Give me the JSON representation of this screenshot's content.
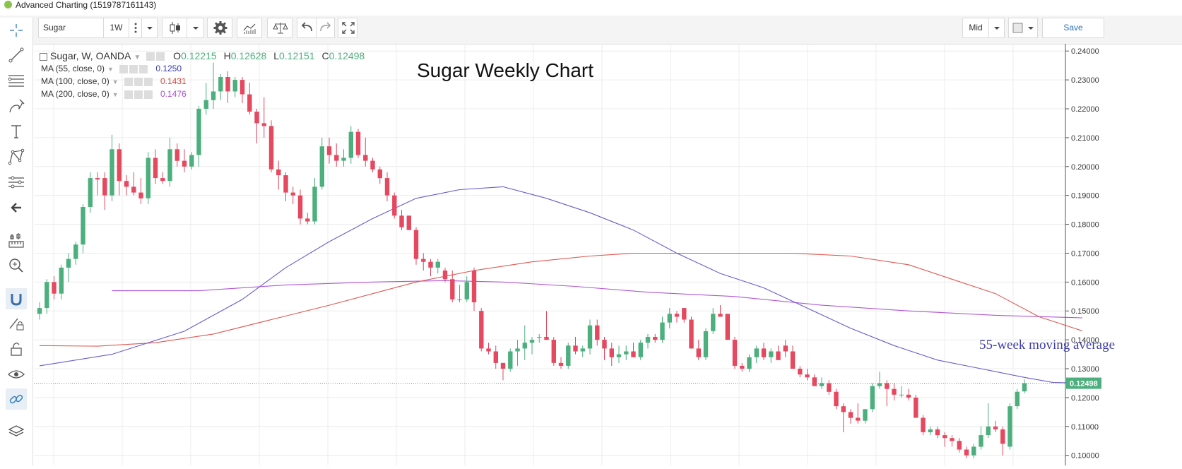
{
  "window": {
    "title": "Advanced Charting (1519787161143)"
  },
  "toolbar": {
    "symbol": "Sugar",
    "interval": "1W",
    "price_mode": "Mid",
    "save_label": "Save"
  },
  "legend": {
    "main": {
      "name": "Sugar, W, OANDA",
      "o_label": "O",
      "o": "0.12215",
      "h_label": "H",
      "h": "0.12628",
      "l_label": "L",
      "l": "0.12151",
      "c_label": "C",
      "c": "0.12498"
    },
    "ma55": {
      "label": "MA (55, close, 0)",
      "value": "0.1250"
    },
    "ma100": {
      "label": "MA (100, close, 0)",
      "value": "0.1431"
    },
    "ma200": {
      "label": "MA (200, close, 0)",
      "value": "0.1476"
    }
  },
  "colors": {
    "up": "#4caf7d",
    "down": "#e5485f",
    "ma55": "#6a5acd",
    "ma100": "#e0574f",
    "ma200": "#b058d4",
    "price_badge": "#4caf7d",
    "annotation": "#3e3ea8"
  },
  "icons": [
    "crosshair-icon",
    "trendline-icon",
    "horizontal-lines-icon",
    "brush-icon",
    "text-icon",
    "pattern-icon",
    "measure-icon",
    "back-arrow-icon",
    "ruler-icon",
    "zoom-in-icon",
    "magnet-icon",
    "lock-draw-icon",
    "lock-icon",
    "eye-icon",
    "link-icon",
    "layers-icon",
    "candles-icon",
    "gear-icon",
    "indicators-icon",
    "compare-icon",
    "undo-icon",
    "redo-icon",
    "fullscreen-icon",
    "chevron-down-icon"
  ],
  "chart_data": {
    "type": "candlestick",
    "title": "Sugar Weekly Chart",
    "annotation": "55-week moving average",
    "ylim": [
      0.0965,
      0.2425
    ],
    "yticks": [
      "0.24000",
      "0.23000",
      "0.22000",
      "0.21000",
      "0.20000",
      "0.19000",
      "0.18000",
      "0.17000",
      "0.16000",
      "0.15000",
      "0.14000",
      "0.13000",
      "0.12000",
      "0.11000",
      "0.10000"
    ],
    "last_price": "0.12498",
    "grid": true,
    "candles": [
      [
        0.149,
        0.153,
        0.147,
        0.151
      ],
      [
        0.151,
        0.161,
        0.149,
        0.16
      ],
      [
        0.16,
        0.162,
        0.154,
        0.156
      ],
      [
        0.156,
        0.166,
        0.154,
        0.165
      ],
      [
        0.165,
        0.17,
        0.16,
        0.168
      ],
      [
        0.168,
        0.174,
        0.166,
        0.173
      ],
      [
        0.173,
        0.187,
        0.17,
        0.186
      ],
      [
        0.186,
        0.198,
        0.184,
        0.196
      ],
      [
        0.196,
        0.198,
        0.19,
        0.1955
      ],
      [
        0.196,
        0.198,
        0.185,
        0.19
      ],
      [
        0.19,
        0.211,
        0.188,
        0.206
      ],
      [
        0.206,
        0.208,
        0.19,
        0.195
      ],
      [
        0.195,
        0.197,
        0.19,
        0.193
      ],
      [
        0.193,
        0.198,
        0.19,
        0.191
      ],
      [
        0.191,
        0.196,
        0.187,
        0.189
      ],
      [
        0.189,
        0.205,
        0.187,
        0.203
      ],
      [
        0.203,
        0.206,
        0.194,
        0.196
      ],
      [
        0.196,
        0.198,
        0.194,
        0.195
      ],
      [
        0.195,
        0.21,
        0.193,
        0.206
      ],
      [
        0.206,
        0.208,
        0.2,
        0.202
      ],
      [
        0.202,
        0.206,
        0.198,
        0.2
      ],
      [
        0.2,
        0.205,
        0.199,
        0.204
      ],
      [
        0.204,
        0.221,
        0.2,
        0.22
      ],
      [
        0.22,
        0.229,
        0.218,
        0.223
      ],
      [
        0.223,
        0.236,
        0.22,
        0.226
      ],
      [
        0.226,
        0.232,
        0.223,
        0.231
      ],
      [
        0.231,
        0.233,
        0.222,
        0.226
      ],
      [
        0.226,
        0.231,
        0.224,
        0.23
      ],
      [
        0.23,
        0.231,
        0.222,
        0.225
      ],
      [
        0.225,
        0.229,
        0.218,
        0.219
      ],
      [
        0.219,
        0.22,
        0.208,
        0.215
      ],
      [
        0.215,
        0.224,
        0.21,
        0.214
      ],
      [
        0.214,
        0.216,
        0.198,
        0.199
      ],
      [
        0.199,
        0.202,
        0.192,
        0.197
      ],
      [
        0.197,
        0.198,
        0.188,
        0.191
      ],
      [
        0.191,
        0.193,
        0.187,
        0.19
      ],
      [
        0.19,
        0.192,
        0.18,
        0.182
      ],
      [
        0.182,
        0.184,
        0.18,
        0.181
      ],
      [
        0.181,
        0.196,
        0.18,
        0.193
      ],
      [
        0.193,
        0.21,
        0.192,
        0.207
      ],
      [
        0.207,
        0.21,
        0.201,
        0.204
      ],
      [
        0.204,
        0.208,
        0.2,
        0.202
      ],
      [
        0.202,
        0.206,
        0.2,
        0.203
      ],
      [
        0.203,
        0.214,
        0.201,
        0.212
      ],
      [
        0.212,
        0.213,
        0.203,
        0.204
      ],
      [
        0.204,
        0.21,
        0.2,
        0.202
      ],
      [
        0.202,
        0.203,
        0.198,
        0.199
      ],
      [
        0.199,
        0.2,
        0.194,
        0.196
      ],
      [
        0.196,
        0.198,
        0.188,
        0.19
      ],
      [
        0.19,
        0.191,
        0.182,
        0.183
      ],
      [
        0.183,
        0.185,
        0.178,
        0.179
      ],
      [
        0.183,
        0.183,
        0.178,
        0.178
      ],
      [
        0.178,
        0.179,
        0.166,
        0.168
      ],
      [
        0.168,
        0.17,
        0.164,
        0.167
      ],
      [
        0.167,
        0.168,
        0.162,
        0.165
      ],
      [
        0.165,
        0.168,
        0.163,
        0.167
      ],
      [
        0.164,
        0.165,
        0.16,
        0.161
      ],
      [
        0.161,
        0.164,
        0.153,
        0.154
      ],
      [
        0.154,
        0.159,
        0.153,
        0.154
      ],
      [
        0.154,
        0.162,
        0.153,
        0.16
      ],
      [
        0.164,
        0.165,
        0.15,
        0.153
      ],
      [
        0.15,
        0.151,
        0.136,
        0.137
      ],
      [
        0.137,
        0.139,
        0.135,
        0.136
      ],
      [
        0.136,
        0.138,
        0.13,
        0.132
      ],
      [
        0.132,
        0.131,
        0.126,
        0.13
      ],
      [
        0.13,
        0.137,
        0.129,
        0.136
      ],
      [
        0.136,
        0.14,
        0.131,
        0.137
      ],
      [
        0.137,
        0.145,
        0.133,
        0.139
      ],
      [
        0.139,
        0.141,
        0.135,
        0.14
      ],
      [
        0.141,
        0.142,
        0.139,
        0.141
      ],
      [
        0.141,
        0.15,
        0.14,
        0.14
      ],
      [
        0.14,
        0.141,
        0.131,
        0.132
      ],
      [
        0.132,
        0.134,
        0.13,
        0.131
      ],
      [
        0.131,
        0.139,
        0.13,
        0.138
      ],
      [
        0.138,
        0.141,
        0.135,
        0.136
      ],
      [
        0.136,
        0.138,
        0.134,
        0.137
      ],
      [
        0.137,
        0.147,
        0.135,
        0.145
      ],
      [
        0.145,
        0.147,
        0.138,
        0.14
      ],
      [
        0.14,
        0.141,
        0.133,
        0.137
      ],
      [
        0.137,
        0.139,
        0.131,
        0.134
      ],
      [
        0.134,
        0.138,
        0.132,
        0.135
      ],
      [
        0.135,
        0.138,
        0.133,
        0.136
      ],
      [
        0.136,
        0.139,
        0.134,
        0.134
      ],
      [
        0.134,
        0.14,
        0.133,
        0.139
      ],
      [
        0.139,
        0.142,
        0.137,
        0.141
      ],
      [
        0.141,
        0.142,
        0.139,
        0.14
      ],
      [
        0.14,
        0.148,
        0.139,
        0.146
      ],
      [
        0.146,
        0.151,
        0.144,
        0.149
      ],
      [
        0.149,
        0.15,
        0.146,
        0.148
      ],
      [
        0.151,
        0.151,
        0.146,
        0.147
      ],
      [
        0.147,
        0.148,
        0.137,
        0.137
      ],
      [
        0.137,
        0.14,
        0.133,
        0.134
      ],
      [
        0.134,
        0.144,
        0.133,
        0.143
      ],
      [
        0.143,
        0.151,
        0.142,
        0.149
      ],
      [
        0.149,
        0.152,
        0.148,
        0.148
      ],
      [
        0.149,
        0.149,
        0.14,
        0.14
      ],
      [
        0.14,
        0.141,
        0.13,
        0.131
      ],
      [
        0.131,
        0.132,
        0.129,
        0.13
      ],
      [
        0.13,
        0.135,
        0.129,
        0.134
      ],
      [
        0.134,
        0.138,
        0.132,
        0.137
      ],
      [
        0.137,
        0.139,
        0.133,
        0.134
      ],
      [
        0.134,
        0.137,
        0.132,
        0.136
      ],
      [
        0.136,
        0.138,
        0.133,
        0.133
      ],
      [
        0.138,
        0.14,
        0.134,
        0.136
      ],
      [
        0.136,
        0.138,
        0.13,
        0.13
      ],
      [
        0.13,
        0.131,
        0.127,
        0.128
      ],
      [
        0.128,
        0.13,
        0.126,
        0.127
      ],
      [
        0.127,
        0.128,
        0.124,
        0.124
      ],
      [
        0.124,
        0.127,
        0.123,
        0.125
      ],
      [
        0.125,
        0.126,
        0.121,
        0.122
      ],
      [
        0.122,
        0.123,
        0.116,
        0.117
      ],
      [
        0.117,
        0.118,
        0.108,
        0.115
      ],
      [
        0.115,
        0.116,
        0.111,
        0.113
      ],
      [
        0.113,
        0.118,
        0.111,
        0.112
      ],
      [
        0.112,
        0.116,
        0.111,
        0.116
      ],
      [
        0.116,
        0.125,
        0.115,
        0.124
      ],
      [
        0.124,
        0.129,
        0.123,
        0.125
      ],
      [
        0.125,
        0.126,
        0.117,
        0.123
      ],
      [
        0.123,
        0.125,
        0.119,
        0.121
      ],
      [
        0.121,
        0.124,
        0.12,
        0.121
      ],
      [
        0.121,
        0.123,
        0.119,
        0.12
      ],
      [
        0.12,
        0.121,
        0.113,
        0.113
      ],
      [
        0.113,
        0.114,
        0.107,
        0.108
      ],
      [
        0.108,
        0.11,
        0.107,
        0.109
      ],
      [
        0.109,
        0.11,
        0.106,
        0.107
      ],
      [
        0.107,
        0.108,
        0.103,
        0.106
      ],
      [
        0.106,
        0.107,
        0.103,
        0.105
      ],
      [
        0.105,
        0.106,
        0.101,
        0.102
      ],
      [
        0.102,
        0.103,
        0.099,
        0.1
      ],
      [
        0.1,
        0.104,
        0.099,
        0.103
      ],
      [
        0.103,
        0.11,
        0.102,
        0.107
      ],
      [
        0.107,
        0.118,
        0.106,
        0.11
      ],
      [
        0.11,
        0.112,
        0.108,
        0.109
      ],
      [
        0.109,
        0.11,
        0.1,
        0.104
      ],
      [
        0.103,
        0.118,
        0.102,
        0.117
      ],
      [
        0.117,
        0.123,
        0.116,
        0.122
      ],
      [
        0.12215,
        0.12628,
        0.12151,
        0.12498
      ]
    ],
    "ma55": [
      [
        0,
        0.131
      ],
      [
        10,
        0.135
      ],
      [
        20,
        0.143
      ],
      [
        28,
        0.154
      ],
      [
        34,
        0.165
      ],
      [
        40,
        0.174
      ],
      [
        46,
        0.182
      ],
      [
        52,
        0.189
      ],
      [
        58,
        0.192
      ],
      [
        64,
        0.193
      ],
      [
        70,
        0.189
      ],
      [
        76,
        0.184
      ],
      [
        82,
        0.178
      ],
      [
        88,
        0.17
      ],
      [
        94,
        0.163
      ],
      [
        100,
        0.158
      ],
      [
        106,
        0.151
      ],
      [
        112,
        0.144
      ],
      [
        118,
        0.138
      ],
      [
        124,
        0.133
      ],
      [
        130,
        0.13
      ],
      [
        136,
        0.127
      ],
      [
        140,
        0.1252
      ],
      [
        144,
        0.125
      ]
    ],
    "ma100": [
      [
        0,
        0.138
      ],
      [
        8,
        0.1378
      ],
      [
        16,
        0.139
      ],
      [
        24,
        0.142
      ],
      [
        32,
        0.147
      ],
      [
        40,
        0.152
      ],
      [
        46,
        0.156
      ],
      [
        52,
        0.16
      ],
      [
        60,
        0.164
      ],
      [
        68,
        0.167
      ],
      [
        76,
        0.169
      ],
      [
        82,
        0.17
      ],
      [
        92,
        0.17
      ],
      [
        104,
        0.17
      ],
      [
        112,
        0.169
      ],
      [
        120,
        0.166
      ],
      [
        126,
        0.161
      ],
      [
        132,
        0.156
      ],
      [
        138,
        0.148
      ],
      [
        144,
        0.1431
      ]
    ],
    "ma200": [
      [
        10,
        0.157
      ],
      [
        22,
        0.157
      ],
      [
        34,
        0.159
      ],
      [
        46,
        0.16
      ],
      [
        56,
        0.1605
      ],
      [
        64,
        0.16
      ],
      [
        74,
        0.1585
      ],
      [
        84,
        0.1565
      ],
      [
        96,
        0.155
      ],
      [
        108,
        0.152
      ],
      [
        120,
        0.15
      ],
      [
        132,
        0.1485
      ],
      [
        144,
        0.1476
      ]
    ]
  }
}
